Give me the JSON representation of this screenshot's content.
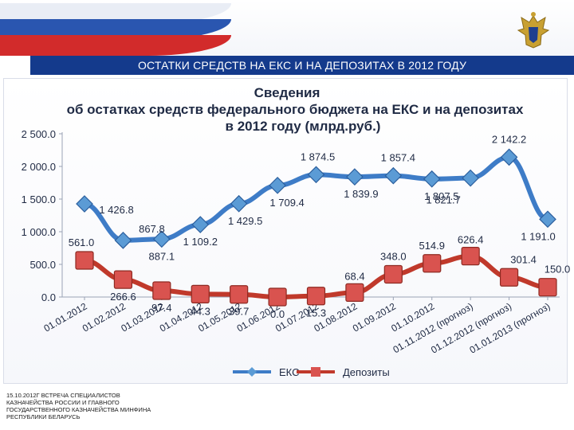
{
  "slide": {
    "banner_title": "ОСТАТКИ СРЕДСТВ НА ЕКС И НА ДЕПОЗИТАХ В 2012 ГОДУ",
    "footer_text": "15.10.2012г ВСТРЕЧА СПЕЦИАЛИСТОВ КАЗНАЧЕЙСТВА РОССИИ И ГЛАВНОГО ГОСУДАРСТВЕННОГО КАЗНАЧЕЙСТВА МИНФИНА РЕСПУБЛИКИ БЕЛАРУСЬ",
    "emblem_icon": "double-headed-eagle-icon"
  },
  "colors": {
    "banner": "#143a8c",
    "eks": "#3e7cc7",
    "eks_marker": "#5b9bd5",
    "deposits": "#c0392b",
    "deposits_marker": "#d9534f"
  },
  "chart_data": {
    "type": "line",
    "title_lines": [
      "Сведения",
      "об остатках средств федерального бюджета на ЕКС и на депозитах",
      "в 2012 году (млрд.руб.)"
    ],
    "categories": [
      "01.01.2012",
      "01.02.2012",
      "01.03.2012",
      "01.04.2012",
      "01.05.2012",
      "01.06.2012",
      "01.07.2012",
      "01.08.2012",
      "01.09.2012",
      "01.10.2012",
      "01.11.2012 (прогноз)",
      "01.12.2012 (прогноз)",
      "01.01.2013 (прогноз)"
    ],
    "series": [
      {
        "name": "ЕКС",
        "values": [
          1426.8,
          867.8,
          887.1,
          1109.2,
          1429.5,
          1709.4,
          1874.5,
          1839.9,
          1857.4,
          1807.5,
          1821.7,
          2142.2,
          1191.0
        ],
        "labels": [
          "1 426.8",
          "867.8",
          "887.1",
          "1 109.2",
          "1 429.5",
          "1 709.4",
          "1 874.5",
          "1 839.9",
          "1 857.4",
          "1 807.5",
          "1 821.7",
          "2 142.2",
          "1 191.0"
        ]
      },
      {
        "name": "Депозиты",
        "values": [
          561.0,
          266.6,
          97.4,
          44.3,
          39.7,
          0.0,
          15.3,
          68.4,
          348.0,
          514.9,
          626.4,
          301.4,
          150.0
        ],
        "labels": [
          "561.0",
          "266.6",
          "97.4",
          "44.3",
          "39.7",
          "0.0",
          "15.3",
          "68.4",
          "348.0",
          "514.9",
          "626.4",
          "301.4",
          "150.0"
        ]
      }
    ],
    "y_ticks": [
      "0.0",
      "500.0",
      "1 000.0",
      "1 500.0",
      "2 000.0",
      "2 500.0"
    ],
    "ylim": [
      0,
      2500
    ],
    "grid": false,
    "legend_position": "bottom"
  }
}
